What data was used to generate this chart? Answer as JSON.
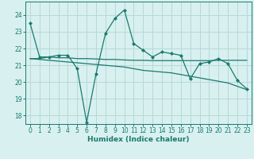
{
  "line1_x": [
    0,
    1,
    2,
    3,
    4,
    5,
    6,
    7,
    8,
    9,
    10,
    11,
    12,
    13,
    14,
    15,
    16,
    17,
    18,
    19,
    20,
    21,
    22,
    23
  ],
  "line1_y": [
    23.5,
    21.5,
    21.5,
    21.6,
    21.6,
    20.8,
    17.6,
    20.5,
    22.9,
    23.8,
    24.3,
    22.3,
    21.9,
    21.5,
    21.8,
    21.7,
    21.6,
    20.2,
    21.1,
    21.2,
    21.4,
    21.1,
    20.1,
    19.6
  ],
  "line2_x": [
    0,
    1,
    2,
    3,
    4,
    5,
    6,
    7,
    8,
    9,
    10,
    11,
    12,
    13,
    14,
    15,
    16,
    17,
    18,
    19,
    20,
    21,
    22,
    23
  ],
  "line2_y": [
    21.4,
    21.4,
    21.5,
    21.45,
    21.45,
    21.4,
    21.4,
    21.38,
    21.35,
    21.35,
    21.32,
    21.3,
    21.3,
    21.28,
    21.28,
    21.28,
    21.28,
    21.28,
    21.28,
    21.28,
    21.3,
    21.3,
    21.3,
    21.3
  ],
  "line3_x": [
    0,
    1,
    2,
    3,
    4,
    5,
    6,
    7,
    8,
    9,
    10,
    11,
    12,
    13,
    14,
    15,
    16,
    17,
    18,
    19,
    20,
    21,
    22,
    23
  ],
  "line3_y": [
    21.4,
    21.35,
    21.3,
    21.25,
    21.2,
    21.15,
    21.1,
    21.05,
    21.0,
    20.95,
    20.9,
    20.8,
    20.7,
    20.65,
    20.6,
    20.55,
    20.45,
    20.35,
    20.25,
    20.15,
    20.05,
    19.95,
    19.75,
    19.55
  ],
  "line_color": "#1a7a6e",
  "bg_color": "#d8f0f0",
  "grid_color": "#b8d8d8",
  "xlabel": "Humidex (Indice chaleur)",
  "ylim": [
    17.5,
    24.8
  ],
  "xlim": [
    -0.5,
    23.5
  ],
  "yticks": [
    18,
    19,
    20,
    21,
    22,
    23,
    24
  ],
  "xticks": [
    0,
    1,
    2,
    3,
    4,
    5,
    6,
    7,
    8,
    9,
    10,
    11,
    12,
    13,
    14,
    15,
    16,
    17,
    18,
    19,
    20,
    21,
    22,
    23
  ],
  "marker": "D",
  "markersize": 2.0,
  "linewidth": 0.9,
  "tick_fontsize": 5.5,
  "xlabel_fontsize": 6.5
}
